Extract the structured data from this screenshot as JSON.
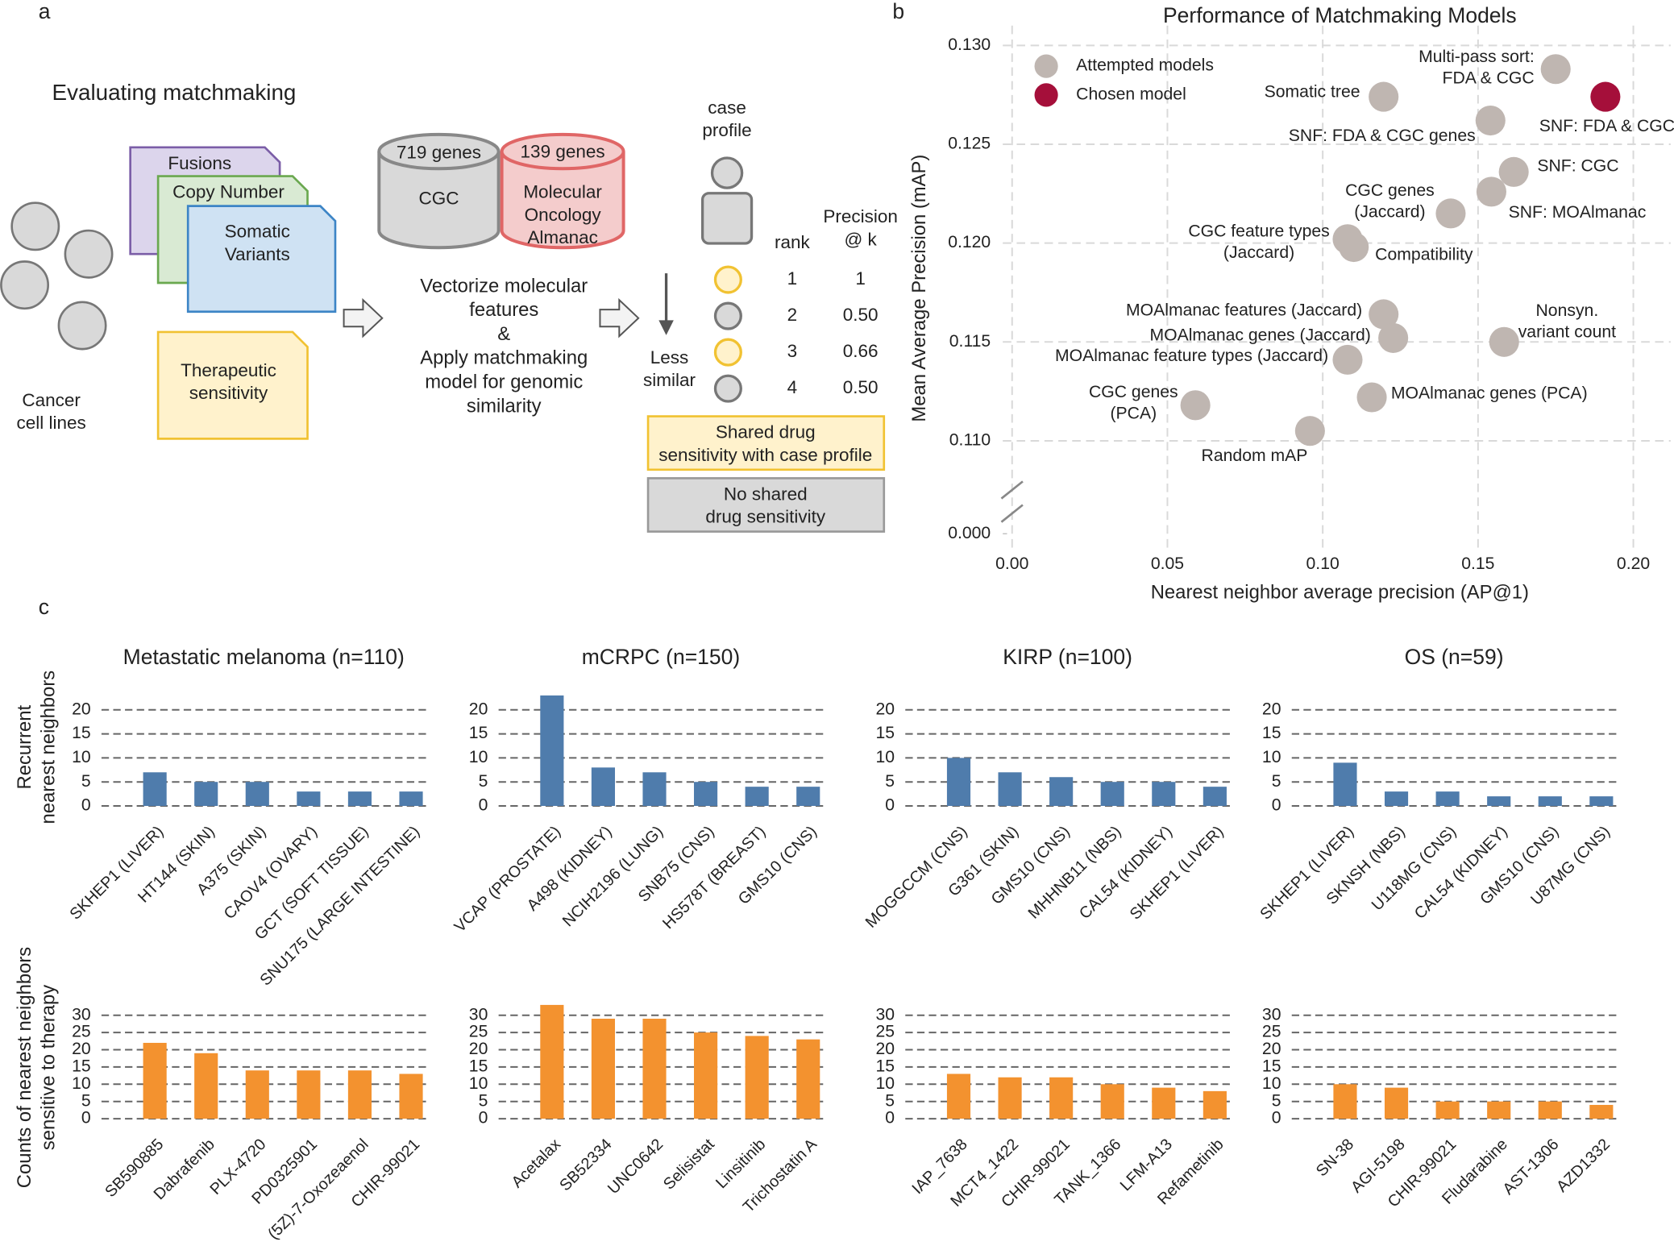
{
  "panel_labels": [
    "a",
    "b",
    "c"
  ],
  "diagram": {
    "heading": "Evaluating matchmaking",
    "cells_label": "Cancer\ncell lines",
    "documents": [
      "Fusions",
      "Copy Number",
      "Somatic\nVariants",
      "Therapeutic\nsensitivity"
    ],
    "databases": [
      {
        "count": "719 genes",
        "name": "CGC"
      },
      {
        "count": "139 genes",
        "name": "Molecular\nOncology\nAlmanac"
      }
    ],
    "method": "Vectorize molecular\nfeatures\n&\nApply matchmaking\nmodel for genomic\nsimilarity",
    "case_profile": "case\nprofile",
    "less_similar": "Less\nsimilar",
    "rank_header": "rank",
    "precision_header": "Precision\n@ k",
    "ranks": [
      1,
      2,
      3,
      4
    ],
    "precisions": [
      "1",
      "0.50",
      "0.66",
      "0.50"
    ],
    "shared_legend": "Shared drug\nsensitivity with case profile",
    "not_shared_legend": "No shared\ndrug sensitivity"
  },
  "chart_data": [
    {
      "type": "scatter",
      "title": "Performance of Matchmaking Models",
      "x_label": "Nearest neighbor average precision (AP@1)",
      "y_label": "Mean Average Precision (mAP)",
      "xlim": [
        -0.003,
        0.212
      ],
      "ylim": [
        0.108,
        0.131
      ],
      "xticks": [
        {
          "value": 0,
          "label": "0.00"
        },
        0.05,
        {
          "value": 0.1,
          "label": "0.10"
        },
        0.15,
        {
          "value": 0.2,
          "label": "0.20"
        }
      ],
      "yticks": [
        {
          "value": 0,
          "label": "0.000"
        },
        {
          "value": 0.11,
          "label": "0.110"
        },
        0.115,
        {
          "value": 0.12,
          "label": "0.120"
        },
        0.125,
        {
          "value": 0.13,
          "label": "0.130"
        }
      ],
      "y_axis_break": true,
      "grid": true,
      "legend": "upper left",
      "series": [
        {
          "name": "Attempted models",
          "color": "#bfb6b1",
          "x": [
            0.175,
            0.1196,
            0.154,
            0.1615,
            0.1543,
            0.1412,
            0.108,
            0.11,
            0.1196,
            0.1227,
            0.1584,
            0.108,
            0.059,
            0.1158,
            0.0959
          ],
          "values": [
            0.1288,
            0.1274,
            0.1262,
            0.1236,
            0.1226,
            0.1215,
            0.1202,
            0.1198,
            0.1164,
            0.1152,
            0.115,
            0.1141,
            0.1118,
            0.1122,
            0.1105
          ],
          "point_labels": [
            "Multi-pass sort:\nFDA & CGC",
            "Somatic tree",
            "SNF: FDA & CGC genes",
            "SNF: CGC",
            "SNF: MOAlmanac",
            "CGC genes\n(Jaccard)",
            "CGC feature types\n(Jaccard)",
            "Compatibility",
            "MOAlmanac features (Jaccard)",
            "MOAlmanac genes (Jaccard)",
            "Nonsyn.\nvariant count",
            "MOAlmanac feature types (Jaccard)",
            "CGC genes\n(PCA)",
            "MOAlmanac genes (PCA)",
            "Random mAP"
          ]
        },
        {
          "name": "Chosen model",
          "color": "#a50f3a",
          "x": [
            0.191
          ],
          "values": [
            0.1274
          ],
          "point_labels": [
            "SNF: FDA & CGC"
          ]
        }
      ]
    },
    {
      "type": "bar",
      "title": "Metastatic melanoma (n=110)",
      "y_label": "Recurrent\nnearest neighbors",
      "color": "#4f7cac",
      "ylim": [
        0,
        24
      ],
      "yticks": [
        0,
        5,
        10,
        15,
        20
      ],
      "grid": true,
      "categories": [
        "SKHEP1 (LIVER)",
        "HT144 (SKIN)",
        "A375 (SKIN)",
        "CAOV4 (OVARY)",
        "GCT (SOFT TISSUE)",
        "SNU175 (LARGE INTESTINE)"
      ],
      "values": [
        7,
        5,
        5,
        3,
        3,
        3
      ]
    },
    {
      "type": "bar",
      "title": "mCRPC (n=150)",
      "color": "#4f7cac",
      "ylim": [
        0,
        24
      ],
      "yticks": [
        0,
        5,
        10,
        15,
        20
      ],
      "grid": true,
      "categories": [
        "VCAP (PROSTATE)",
        "A498 (KIDNEY)",
        "NCIH2196 (LUNG)",
        "SNB75 (CNS)",
        "HS578T (BREAST)",
        "GMS10 (CNS)"
      ],
      "values": [
        23,
        8,
        7,
        5,
        4,
        4
      ]
    },
    {
      "type": "bar",
      "title": "KIRP (n=100)",
      "color": "#4f7cac",
      "ylim": [
        0,
        24
      ],
      "yticks": [
        0,
        5,
        10,
        15,
        20
      ],
      "grid": true,
      "categories": [
        "MOGGCCM (CNS)",
        "G361 (SKIN)",
        "GMS10 (CNS)",
        "MHHNB11 (NBS)",
        "CAL54 (KIDNEY)",
        "SKHEP1 (LIVER)"
      ],
      "values": [
        10,
        7,
        6,
        5,
        5,
        4
      ]
    },
    {
      "type": "bar",
      "title": "OS (n=59)",
      "color": "#4f7cac",
      "ylim": [
        0,
        24
      ],
      "yticks": [
        0,
        5,
        10,
        15,
        20
      ],
      "grid": true,
      "categories": [
        "SKHEP1 (LIVER)",
        "SKNSH (NBS)",
        "U118MG (CNS)",
        "CAL54 (KIDNEY)",
        "GMS10 (CNS)",
        "U87MG (CNS)"
      ],
      "values": [
        9,
        3,
        3,
        2,
        2,
        2
      ]
    },
    {
      "type": "bar",
      "y_label": "Counts of nearest neighbors\nsensitive to therapy",
      "color": "#f3922f",
      "ylim": [
        0,
        34
      ],
      "yticks": [
        0,
        5,
        10,
        15,
        20,
        25,
        30
      ],
      "grid": true,
      "categories": [
        "SB590885",
        "Dabrafenib",
        "PLX-4720",
        "PD0325901",
        "(5Z)-7-Oxozeaenol",
        "CHIR-99021"
      ],
      "values": [
        22,
        19,
        14,
        14,
        14,
        13
      ]
    },
    {
      "type": "bar",
      "color": "#f3922f",
      "ylim": [
        0,
        34
      ],
      "yticks": [
        0,
        5,
        10,
        15,
        20,
        25,
        30
      ],
      "grid": true,
      "categories": [
        "Acetalax",
        "SB52334",
        "UNC0642",
        "Selisistat",
        "Linsitinib",
        "Trichostatin A"
      ],
      "values": [
        33,
        29,
        29,
        25,
        24,
        23
      ]
    },
    {
      "type": "bar",
      "color": "#f3922f",
      "ylim": [
        0,
        34
      ],
      "yticks": [
        0,
        5,
        10,
        15,
        20,
        25,
        30
      ],
      "grid": true,
      "categories": [
        "IAP_7638",
        "MCT4_1422",
        "CHIR-99021",
        "TANK_1366",
        "LFM-A13",
        "Refametinib"
      ],
      "values": [
        13,
        12,
        12,
        10,
        9,
        8
      ]
    },
    {
      "type": "bar",
      "color": "#f3922f",
      "ylim": [
        0,
        34
      ],
      "yticks": [
        0,
        5,
        10,
        15,
        20,
        25,
        30
      ],
      "grid": true,
      "categories": [
        "SN-38",
        "AGI-5198",
        "CHIR-99021",
        "Fludarabine",
        "AST-1306",
        "AZD1332"
      ],
      "values": [
        10,
        9,
        5,
        5,
        5,
        4
      ]
    }
  ]
}
